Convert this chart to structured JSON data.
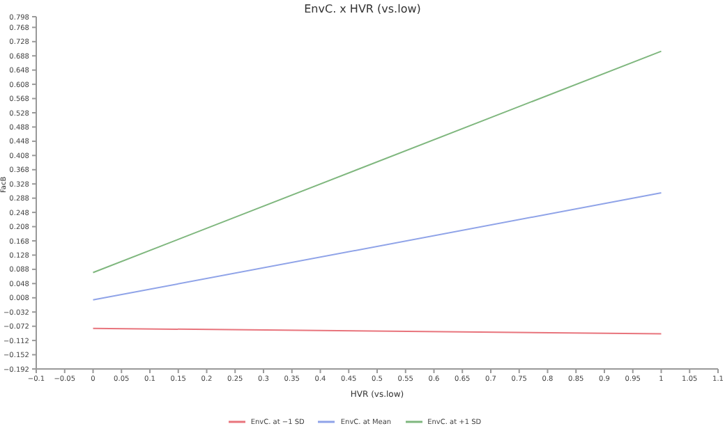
{
  "chart_data": {
    "type": "line",
    "title": "EnvC. x HVR (vs.low)",
    "xlabel": "HVR (vs.low)",
    "ylabel": "FacB",
    "x": [
      0,
      1
    ],
    "series": [
      {
        "name": "EnvC. at −1 SD",
        "color": "#e8747c",
        "values": [
          -0.078,
          -0.093
        ]
      },
      {
        "name": "EnvC. at Mean",
        "color": "#8fa3e8",
        "values": [
          0.002,
          0.303
        ]
      },
      {
        "name": "EnvC. at +1 SD",
        "color": "#7fb77e",
        "values": [
          0.079,
          0.701
        ]
      }
    ],
    "xlim": [
      -0.1,
      1.1
    ],
    "xticks": [
      {
        "value": -0.1,
        "label": "−0.1"
      },
      {
        "value": -0.05,
        "label": "−0.05"
      },
      0,
      0.05,
      0.1,
      0.15,
      0.2,
      0.25,
      0.3,
      0.35,
      0.4,
      0.45,
      0.5,
      0.55,
      0.6,
      0.65,
      0.7,
      0.75,
      0.8,
      0.85,
      0.9,
      0.95,
      1,
      1.05,
      1.1
    ],
    "ylim": [
      -0.192,
      0.798
    ],
    "yticks": [
      {
        "value": -0.192,
        "label": "−0.192"
      },
      {
        "value": -0.152,
        "label": "−0.152"
      },
      {
        "value": -0.112,
        "label": "−0.112"
      },
      {
        "value": -0.072,
        "label": "−0.072"
      },
      {
        "value": -0.032,
        "label": "−0.032"
      },
      0.008,
      0.048,
      0.088,
      0.128,
      0.168,
      0.208,
      0.248,
      0.288,
      0.328,
      0.368,
      0.408,
      0.448,
      0.488,
      0.528,
      0.568,
      0.608,
      0.648,
      0.688,
      0.728,
      0.768,
      0.798
    ],
    "grid": false,
    "legend": "bottom",
    "marker": "none",
    "line_style": "solid"
  }
}
